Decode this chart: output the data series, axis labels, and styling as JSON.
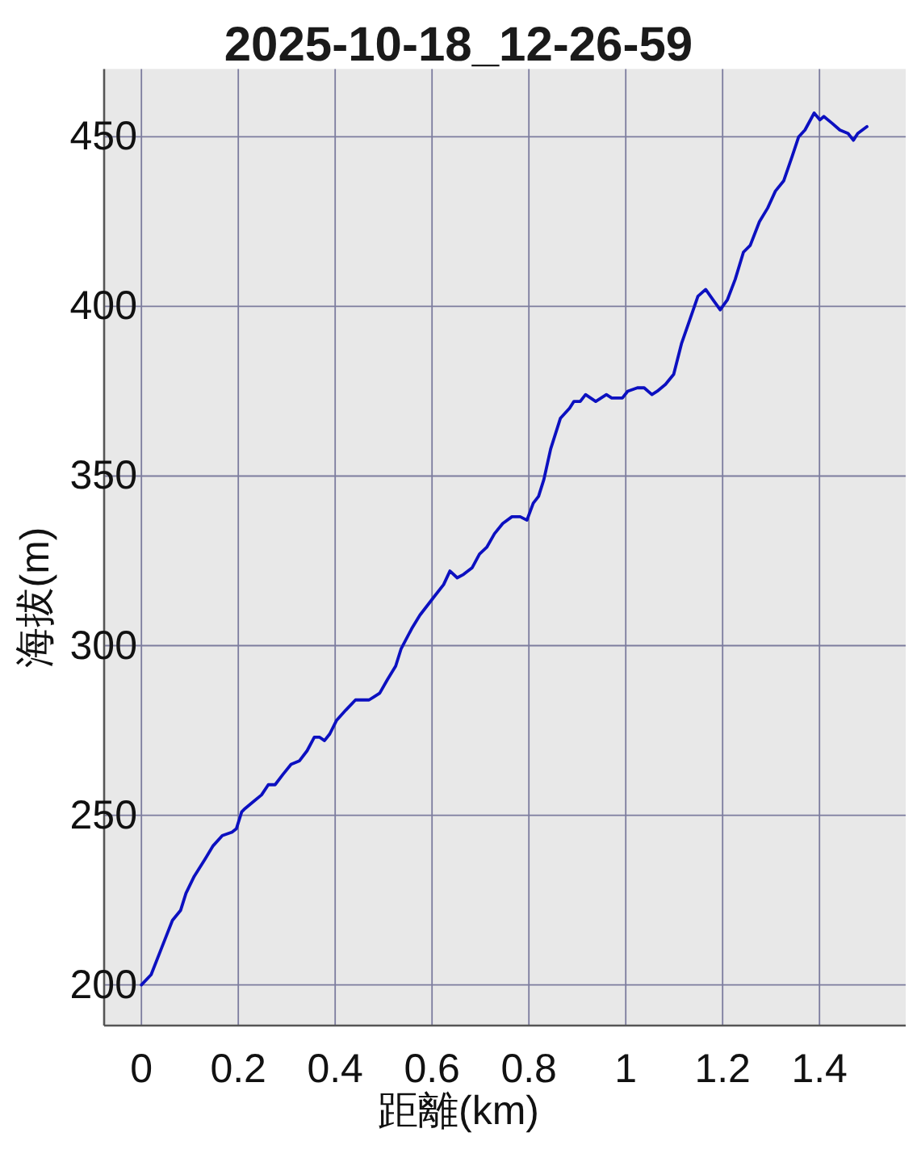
{
  "chart_data": {
    "type": "line",
    "title": "2025-10-18_12-26-59",
    "xlabel": "距離(km)",
    "ylabel": "海拔(m)",
    "x": [
      0,
      0.02,
      0.042,
      0.064,
      0.081,
      0.092,
      0.109,
      0.131,
      0.148,
      0.167,
      0.187,
      0.196,
      0.207,
      0.214,
      0.231,
      0.248,
      0.262,
      0.276,
      0.292,
      0.309,
      0.326,
      0.342,
      0.357,
      0.368,
      0.378,
      0.389,
      0.403,
      0.422,
      0.442,
      0.47,
      0.481,
      0.492,
      0.508,
      0.525,
      0.536,
      0.558,
      0.575,
      0.602,
      0.624,
      0.637,
      0.652,
      0.665,
      0.683,
      0.698,
      0.713,
      0.729,
      0.746,
      0.765,
      0.782,
      0.796,
      0.809,
      0.82,
      0.831,
      0.845,
      0.865,
      0.884,
      0.893,
      0.906,
      0.917,
      0.938,
      0.96,
      0.971,
      0.993,
      1.004,
      1.024,
      1.038,
      1.054,
      1.065,
      1.082,
      1.099,
      1.115,
      1.132,
      1.149,
      1.165,
      1.18,
      1.195,
      1.21,
      1.226,
      1.243,
      1.257,
      1.276,
      1.293,
      1.309,
      1.326,
      1.343,
      1.357,
      1.37,
      1.389,
      1.401,
      1.409,
      1.426,
      1.442,
      1.459,
      1.47,
      1.479,
      1.498
    ],
    "series": [
      {
        "color": "#0c10c0",
        "values": [
          200,
          203,
          211,
          219,
          222,
          227,
          232,
          237,
          241,
          244,
          245,
          246,
          251,
          252,
          254,
          256,
          259,
          259,
          262,
          265,
          266,
          269,
          273,
          273,
          272,
          274,
          278,
          281,
          284,
          284,
          285,
          286,
          290,
          294,
          299,
          305,
          309,
          314,
          318,
          322,
          320,
          321,
          323,
          327,
          329,
          333,
          336,
          338,
          338,
          337,
          342,
          344,
          349,
          358,
          367,
          370,
          372,
          372,
          374,
          372,
          374,
          373,
          373,
          375,
          376,
          376,
          374,
          375,
          377,
          380,
          389,
          396,
          403,
          405,
          402,
          399,
          402,
          408,
          416,
          418,
          425,
          429,
          434,
          437,
          444,
          450,
          452,
          457,
          455,
          456,
          454,
          452,
          451,
          449,
          451,
          453
        ]
      }
    ],
    "xlim": [
      -0.077,
      1.578
    ],
    "ylim": [
      188,
      470
    ],
    "xticks": [
      0,
      0.2,
      0.4,
      0.6,
      0.8,
      1,
      1.2,
      1.4
    ],
    "yticks": [
      200,
      250,
      300,
      350,
      400,
      450
    ],
    "grid": true,
    "line_style": "solid"
  }
}
